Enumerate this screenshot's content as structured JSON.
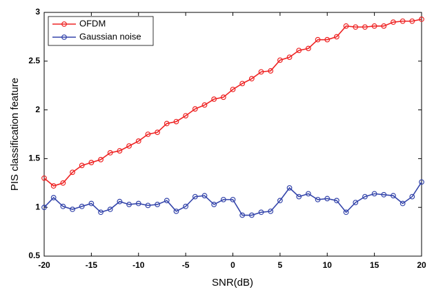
{
  "chart_data": {
    "type": "line",
    "x_label": "SNR(dB)",
    "y_label": "PIS classification feature",
    "x": [
      -20,
      -19,
      -18,
      -17,
      -16,
      -15,
      -14,
      -13,
      -12,
      -11,
      -10,
      -9,
      -8,
      -7,
      -6,
      -5,
      -4,
      -3,
      -2,
      -1,
      0,
      1,
      2,
      3,
      4,
      5,
      6,
      7,
      8,
      9,
      10,
      11,
      12,
      13,
      14,
      15,
      16,
      17,
      18,
      19,
      20
    ],
    "series": [
      {
        "name": "OFDM",
        "color": "#ee2222",
        "values": [
          1.3,
          1.22,
          1.25,
          1.36,
          1.43,
          1.46,
          1.49,
          1.56,
          1.58,
          1.63,
          1.68,
          1.75,
          1.77,
          1.86,
          1.88,
          1.94,
          2.01,
          2.05,
          2.11,
          2.13,
          2.21,
          2.27,
          2.32,
          2.39,
          2.4,
          2.51,
          2.54,
          2.61,
          2.63,
          2.72,
          2.72,
          2.75,
          2.86,
          2.85,
          2.85,
          2.86,
          2.86,
          2.9,
          2.91,
          2.91,
          2.93
        ]
      },
      {
        "name": "Gaussian noise",
        "color": "#3344aa",
        "values": [
          1.0,
          1.1,
          1.01,
          0.98,
          1.01,
          1.04,
          0.95,
          0.98,
          1.06,
          1.03,
          1.04,
          1.02,
          1.03,
          1.07,
          0.96,
          1.01,
          1.11,
          1.12,
          1.03,
          1.08,
          1.08,
          0.92,
          0.92,
          0.95,
          0.96,
          1.07,
          1.2,
          1.11,
          1.14,
          1.08,
          1.09,
          1.07,
          0.95,
          1.05,
          1.11,
          1.14,
          1.13,
          1.12,
          1.04,
          1.11,
          1.26
        ]
      }
    ],
    "xlim": [
      -20,
      20
    ],
    "xticks": [
      -20,
      -15,
      -10,
      -5,
      0,
      5,
      10,
      15,
      20
    ],
    "ylim": [
      0.5,
      3
    ],
    "yticks": [
      0.5,
      1,
      1.5,
      2,
      2.5,
      3
    ],
    "grid": false,
    "legend": "upper-left"
  }
}
